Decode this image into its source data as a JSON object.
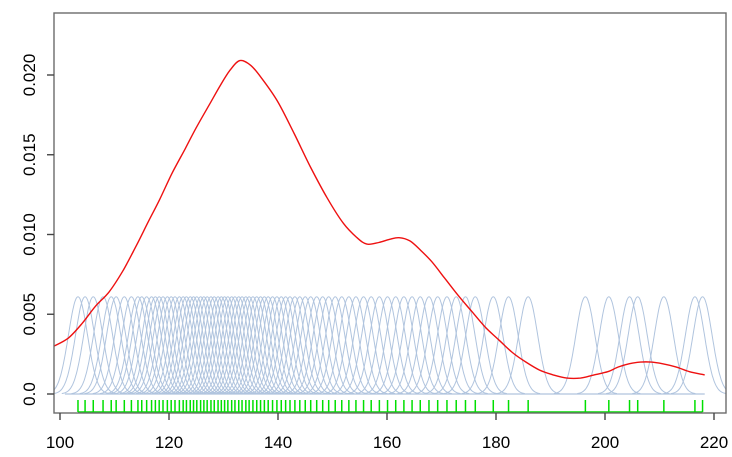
{
  "chart_data": {
    "type": "line",
    "title": "",
    "xlabel": "",
    "ylabel": "",
    "grid": false,
    "legend": null,
    "xlim": [
      98.9,
      222.2
    ],
    "ylim": [
      0,
      0.0239
    ],
    "x_ticks": [
      100,
      120,
      140,
      160,
      180,
      200,
      220
    ],
    "x_tick_labels": [
      "100",
      "120",
      "140",
      "160",
      "180",
      "200",
      "220"
    ],
    "y_ticks": [
      0,
      0.005,
      0.01,
      0.015,
      0.02
    ],
    "y_tick_labels": [
      "0.0",
      "0.005",
      "0.010",
      "0.015",
      "0.020"
    ],
    "series": [
      {
        "name": "kde-density-curve",
        "color": "#ee1111",
        "points": [
          [
            98.9,
            0.003
          ],
          [
            101.5,
            0.0035
          ],
          [
            104,
            0.0044
          ],
          [
            106.5,
            0.0055
          ],
          [
            109,
            0.0064
          ],
          [
            111.5,
            0.0077
          ],
          [
            114,
            0.0093
          ],
          [
            116.2,
            0.0108
          ],
          [
            118.3,
            0.0122
          ],
          [
            120.5,
            0.0138
          ],
          [
            123,
            0.0154
          ],
          [
            125,
            0.0167
          ],
          [
            127.5,
            0.0182
          ],
          [
            129.5,
            0.0194
          ],
          [
            131.2,
            0.0203
          ],
          [
            133,
            0.0209
          ],
          [
            135,
            0.0206
          ],
          [
            137,
            0.0198
          ],
          [
            140,
            0.0183
          ],
          [
            143,
            0.0163
          ],
          [
            146,
            0.0142
          ],
          [
            149,
            0.0123
          ],
          [
            152,
            0.0107
          ],
          [
            154.5,
            0.0098
          ],
          [
            156.3,
            0.0094
          ],
          [
            158.5,
            0.0095
          ],
          [
            160.5,
            0.0097
          ],
          [
            162.2,
            0.0098
          ],
          [
            164.2,
            0.0096
          ],
          [
            166.2,
            0.009
          ],
          [
            168.2,
            0.0083
          ],
          [
            170.5,
            0.0073
          ],
          [
            173,
            0.0062
          ],
          [
            175.5,
            0.0052
          ],
          [
            178,
            0.0042
          ],
          [
            180.5,
            0.0034
          ],
          [
            183,
            0.0026
          ],
          [
            185.5,
            0.002
          ],
          [
            188,
            0.0015
          ],
          [
            190.5,
            0.0012
          ],
          [
            193,
            0.001
          ],
          [
            195.5,
            0.001
          ],
          [
            198,
            0.0012
          ],
          [
            200.5,
            0.0014
          ],
          [
            202.5,
            0.0017
          ],
          [
            204.5,
            0.0019
          ],
          [
            206.5,
            0.002
          ],
          [
            208.5,
            0.002
          ],
          [
            210.5,
            0.0019
          ],
          [
            213,
            0.0017
          ],
          [
            215.5,
            0.0014
          ],
          [
            218.3,
            0.0012
          ]
        ]
      },
      {
        "name": "individual-kernels",
        "color": "#B0C4DE",
        "kernel_height": 0.0061,
        "kernel_sigma": 1.75,
        "baseline_span": [
          100.9,
          218.3
        ],
        "centers_ref": "data_points"
      },
      {
        "name": "rug-marks",
        "color": "#00DF00",
        "points_ref": "data_points"
      }
    ],
    "data_points": [
      103.3,
      104.6,
      106.1,
      107.9,
      109.4,
      110.3,
      111.8,
      113.1,
      114.3,
      115.0,
      115.9,
      116.8,
      117.5,
      118.2,
      118.9,
      119.7,
      120.4,
      121.1,
      121.9,
      122.6,
      123.2,
      123.9,
      124.5,
      125.1,
      125.8,
      126.4,
      127.0,
      127.7,
      128.3,
      129.0,
      129.6,
      130.2,
      130.8,
      131.5,
      132.1,
      132.8,
      133.4,
      134.1,
      134.7,
      135.4,
      136.1,
      136.8,
      137.5,
      138.2,
      139.0,
      139.8,
      140.6,
      141.4,
      142.2,
      143.1,
      144.0,
      145.0,
      146.0,
      147.1,
      148.2,
      149.3,
      150.5,
      151.7,
      153.0,
      154.3,
      155.7,
      157.1,
      158.6,
      160.1,
      161.6,
      163.1,
      164.6,
      166.1,
      167.7,
      169.3,
      171.0,
      172.7,
      174.4,
      176.2,
      179.5,
      182.3,
      185.9,
      196.4,
      200.7,
      204.5,
      206.0,
      210.8,
      216.5,
      217.9
    ]
  },
  "colors": {
    "kde_curve": "#ee1111",
    "kernels": "#B0C4DE",
    "rug": "#00DF00",
    "axis": "#444444",
    "box": "#6b6b6b",
    "tick_label": "#000000",
    "background": "#ffffff"
  }
}
